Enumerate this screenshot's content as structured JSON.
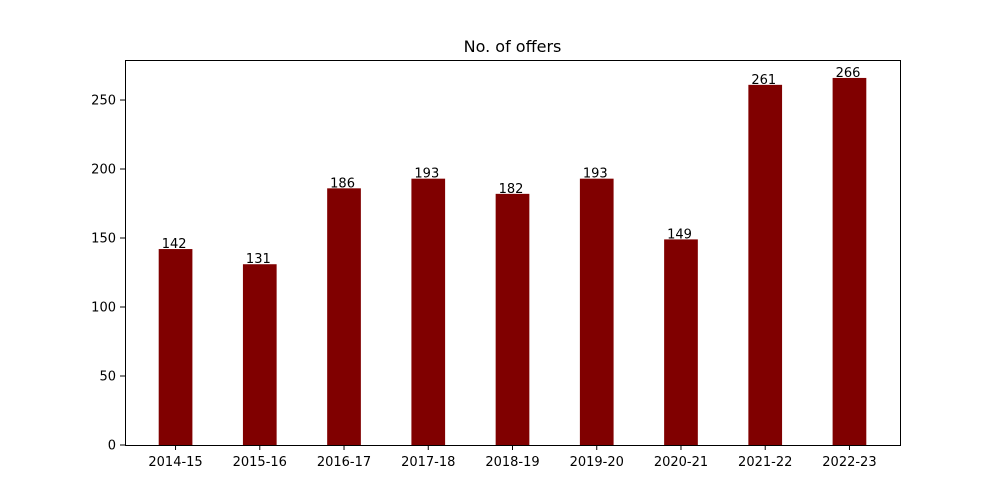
{
  "chart_data": {
    "type": "bar",
    "title": "No. of offers",
    "xlabel": "",
    "ylabel": "",
    "categories": [
      "2014-15",
      "2015-16",
      "2016-17",
      "2017-18",
      "2018-19",
      "2019-20",
      "2020-21",
      "2021-22",
      "2022-23"
    ],
    "values": [
      142,
      131,
      186,
      193,
      182,
      193,
      149,
      261,
      266
    ],
    "ylim": [
      0,
      279
    ],
    "yticks": [
      0,
      50,
      100,
      150,
      200,
      250
    ],
    "grid": false,
    "legend": "none",
    "bar_color": "#800000"
  }
}
